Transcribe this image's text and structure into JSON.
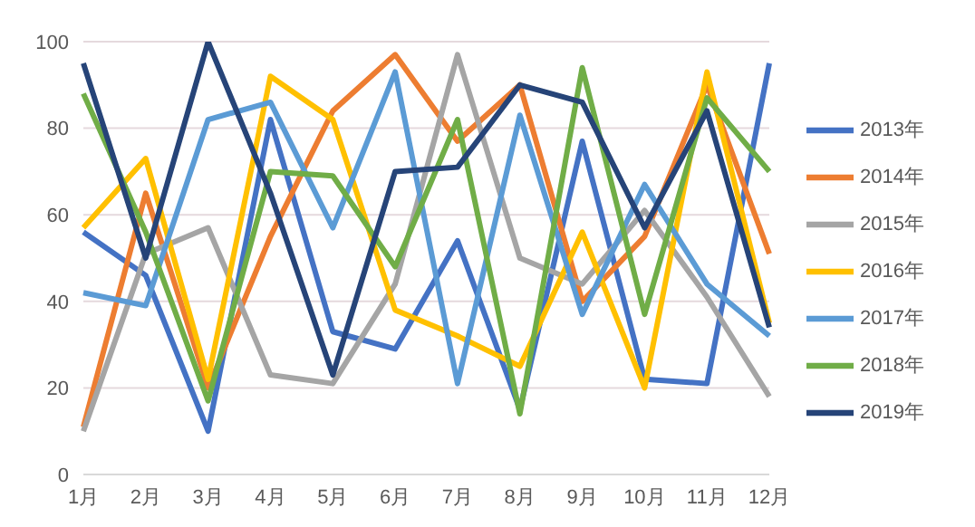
{
  "chart_data": {
    "type": "line",
    "categories": [
      "1月",
      "2月",
      "3月",
      "4月",
      "5月",
      "6月",
      "7月",
      "8月",
      "9月",
      "10月",
      "11月",
      "12月"
    ],
    "series": [
      {
        "name": "2013年",
        "color": "#4472c4",
        "values": [
          56,
          46,
          10,
          82,
          33,
          29,
          54,
          15,
          77,
          22,
          21,
          95
        ]
      },
      {
        "name": "2014年",
        "color": "#ed7d31",
        "values": [
          11,
          65,
          20,
          55,
          84,
          97,
          77,
          90,
          40,
          55,
          90,
          51
        ]
      },
      {
        "name": "2015年",
        "color": "#a5a5a5",
        "values": [
          10,
          51,
          57,
          23,
          21,
          44,
          97,
          50,
          44,
          61,
          41,
          18
        ]
      },
      {
        "name": "2016年",
        "color": "#ffc000",
        "values": [
          57,
          73,
          22,
          92,
          82,
          38,
          32,
          25,
          56,
          20,
          93,
          35
        ]
      },
      {
        "name": "2017年",
        "color": "#5b9bd5",
        "values": [
          42,
          39,
          82,
          86,
          57,
          93,
          21,
          83,
          37,
          67,
          44,
          32
        ]
      },
      {
        "name": "2018年",
        "color": "#70ad47",
        "values": [
          88,
          56,
          17,
          70,
          69,
          48,
          82,
          14,
          94,
          37,
          87,
          70
        ]
      },
      {
        "name": "2019年",
        "color": "#264478",
        "values": [
          95,
          50,
          100,
          65,
          23,
          70,
          71,
          90,
          86,
          57,
          84,
          34
        ]
      }
    ],
    "ylim": [
      0,
      100
    ],
    "yticks": [
      0,
      20,
      40,
      60,
      80,
      100
    ],
    "grid": "y",
    "legend": "right",
    "marker": "none",
    "line_style": "solid"
  }
}
